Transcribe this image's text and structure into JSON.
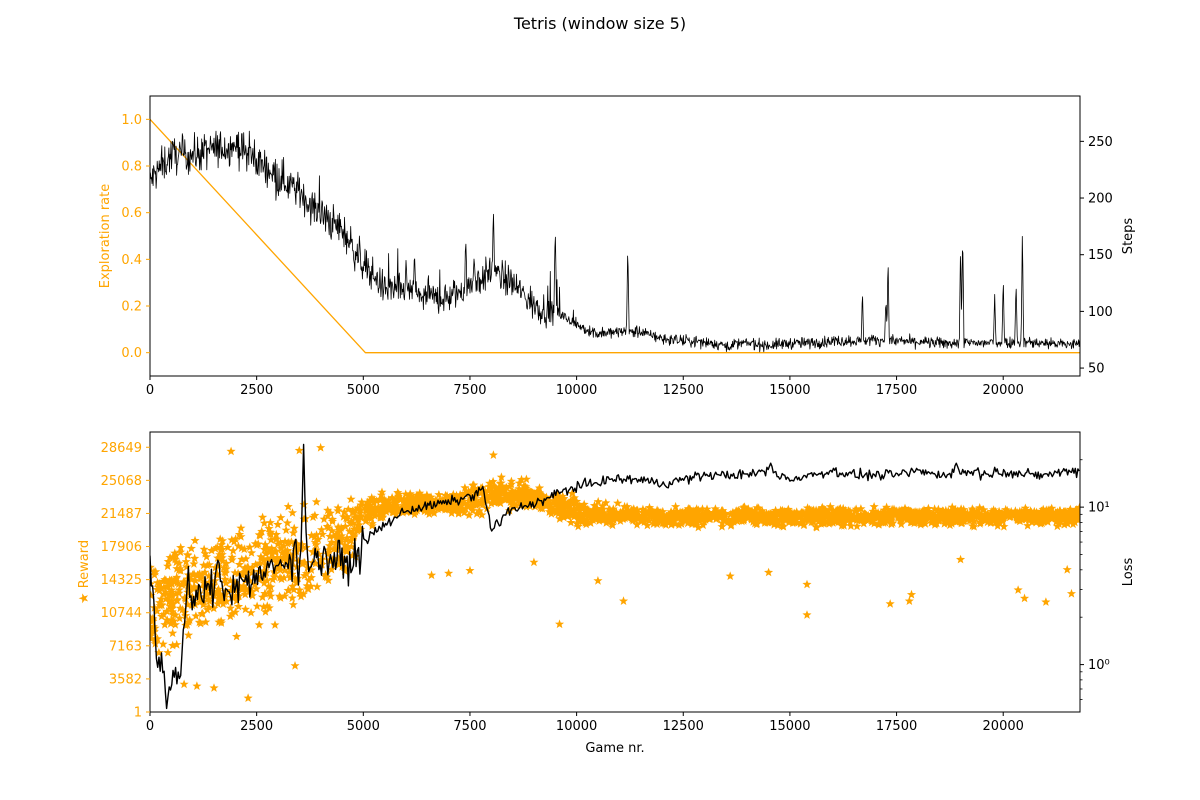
{
  "figure": {
    "title": "Tetris (window size 5)",
    "accent_color": "#ffa500",
    "line_color": "#000000"
  },
  "chart_data": [
    {
      "type": "line",
      "panel": "top",
      "xlabel": "",
      "xlim": [
        0,
        21800
      ],
      "x_ticks": [
        0,
        2500,
        5000,
        7500,
        10000,
        12500,
        15000,
        17500,
        20000
      ],
      "left_axis": {
        "label": "Exploration rate",
        "color": "#ffa500",
        "ylim": [
          -0.1,
          1.1
        ],
        "ticks": [
          0.0,
          0.2,
          0.4,
          0.6,
          0.8,
          1.0
        ]
      },
      "right_axis": {
        "label": "Steps",
        "color": "#000000",
        "ylim": [
          43,
          290
        ],
        "ticks": [
          50,
          100,
          150,
          200,
          250
        ]
      },
      "series": [
        {
          "axis": "left",
          "color": "#ffa500",
          "points": [
            [
              0,
              1.0
            ],
            [
              5050,
              0.0
            ],
            [
              21800,
              0.0
            ]
          ]
        },
        {
          "axis": "right",
          "color": "#000000",
          "points": [
            [
              0,
              215
            ],
            [
              500,
              238
            ],
            [
              1000,
              238
            ],
            [
              1500,
              243
            ],
            [
              2000,
              247
            ],
            [
              2500,
              233
            ],
            [
              3000,
              220
            ],
            [
              3500,
              205
            ],
            [
              4000,
              185
            ],
            [
              4500,
              172
            ],
            [
              5000,
              142
            ],
            [
              5500,
              120
            ],
            [
              6000,
              118
            ],
            [
              6500,
              112
            ],
            [
              7000,
              112
            ],
            [
              7500,
              122
            ],
            [
              8000,
              135
            ],
            [
              8500,
              125
            ],
            [
              9000,
              105
            ],
            [
              9500,
              100
            ],
            [
              10000,
              88
            ],
            [
              10500,
              80
            ],
            [
              11000,
              82
            ],
            [
              11500,
              82
            ],
            [
              12000,
              76
            ],
            [
              12500,
              74
            ],
            [
              13000,
              73
            ],
            [
              13500,
              70
            ],
            [
              14000,
              72
            ],
            [
              14500,
              70
            ],
            [
              15000,
              72
            ],
            [
              15500,
              72
            ],
            [
              16000,
              74
            ],
            [
              16500,
              74
            ],
            [
              17000,
              75
            ],
            [
              17500,
              74
            ],
            [
              18000,
              73
            ],
            [
              18500,
              72
            ],
            [
              19000,
              72
            ],
            [
              19500,
              72
            ],
            [
              20000,
              73
            ],
            [
              20500,
              73
            ],
            [
              21000,
              72
            ],
            [
              21500,
              71
            ],
            [
              21800,
              71
            ]
          ],
          "spikes": [
            [
              8050,
              190
            ],
            [
              9500,
              175
            ],
            [
              11200,
              160
            ],
            [
              17300,
              148
            ],
            [
              19000,
              160
            ],
            [
              19050,
              173
            ],
            [
              20300,
              127
            ],
            [
              20450,
              173
            ],
            [
              16700,
              118
            ],
            [
              17250,
              112
            ],
            [
              19800,
              115
            ],
            [
              20000,
              130
            ],
            [
              6000,
              145
            ],
            [
              6200,
              152
            ],
            [
              7400,
              165
            ],
            [
              7600,
              150
            ]
          ]
        }
      ]
    },
    {
      "type": "scatter",
      "panel": "bottom",
      "xlabel": "Game nr.",
      "xlim": [
        0,
        21800
      ],
      "x_ticks": [
        0,
        2500,
        5000,
        7500,
        10000,
        12500,
        15000,
        17500,
        20000
      ],
      "left_axis": {
        "label": "★ Reward",
        "color": "#ffa500",
        "ylim": [
          1,
          30300
        ],
        "ticks": [
          1,
          3582,
          7163,
          10744,
          14325,
          17906,
          21487,
          25068,
          28649
        ]
      },
      "right_axis": {
        "label": "Loss",
        "color": "#000000",
        "scale": "log",
        "ylim": [
          0.5,
          30
        ],
        "ticks": [
          1,
          10
        ],
        "tick_labels": [
          "10⁰",
          "10¹"
        ]
      },
      "series": [
        {
          "axis": "left",
          "marker": "star",
          "color": "#ffa500",
          "band": [
            [
              0,
              3000,
              20000
            ],
            [
              1000,
              4000,
              22000
            ],
            [
              2000,
              5000,
              24000
            ],
            [
              3000,
              7000,
              25500
            ],
            [
              4000,
              9000,
              26000
            ],
            [
              4600,
              12000,
              26000
            ],
            [
              5000,
              18000,
              25000
            ],
            [
              5500,
              20000,
              24500
            ],
            [
              6000,
              20500,
              24500
            ],
            [
              7000,
              20500,
              24500
            ],
            [
              7500,
              20500,
              25500
            ],
            [
              8000,
              21000,
              26500
            ],
            [
              8500,
              21000,
              26000
            ],
            [
              9000,
              21000,
              25500
            ],
            [
              9500,
              20000,
              25000
            ],
            [
              10000,
              19500,
              24000
            ],
            [
              11000,
              19500,
              23000
            ],
            [
              12000,
              19500,
              22800
            ],
            [
              13000,
              19500,
              22800
            ],
            [
              14000,
              19500,
              22800
            ],
            [
              15000,
              19500,
              22800
            ],
            [
              16000,
              19500,
              22800
            ],
            [
              17000,
              19500,
              22800
            ],
            [
              18000,
              19500,
              22800
            ],
            [
              19000,
              19500,
              22800
            ],
            [
              20000,
              19500,
              22800
            ],
            [
              21000,
              19500,
              22800
            ],
            [
              21800,
              19500,
              22800
            ]
          ],
          "outliers": [
            [
              1900,
              28200
            ],
            [
              3500,
              28300
            ],
            [
              4000,
              28600
            ],
            [
              8050,
              27800
            ],
            [
              9600,
              9500
            ],
            [
              11100,
              12000
            ],
            [
              15400,
              10500
            ],
            [
              15400,
              13800
            ],
            [
              10500,
              14200
            ],
            [
              17350,
              11700
            ],
            [
              17800,
              12000
            ],
            [
              17850,
              12700
            ],
            [
              19000,
              16500
            ],
            [
              20350,
              13200
            ],
            [
              20500,
              12300
            ],
            [
              21000,
              11900
            ],
            [
              21600,
              12800
            ],
            [
              21500,
              15400
            ],
            [
              6600,
              14800
            ],
            [
              7000,
              15000
            ],
            [
              7500,
              15300
            ],
            [
              9000,
              16200
            ],
            [
              13600,
              14700
            ],
            [
              14500,
              15100
            ],
            [
              2300,
              1500
            ],
            [
              1100,
              2800
            ],
            [
              1500,
              2600
            ],
            [
              800,
              3000
            ],
            [
              3400,
              5000
            ]
          ]
        },
        {
          "axis": "right",
          "color": "#000000",
          "points": [
            [
              0,
              4
            ],
            [
              150,
              1.2
            ],
            [
              300,
              0.95
            ],
            [
              450,
              0.85
            ],
            [
              600,
              0.8
            ],
            [
              750,
              1.2
            ],
            [
              900,
              3
            ],
            [
              1050,
              2.2
            ],
            [
              1200,
              2.5
            ],
            [
              1400,
              3
            ],
            [
              1600,
              3.5
            ],
            [
              1800,
              3
            ],
            [
              2000,
              3.2
            ],
            [
              2200,
              3.4
            ],
            [
              2500,
              3.6
            ],
            [
              2800,
              4
            ],
            [
              3100,
              4.5
            ],
            [
              3400,
              4.4
            ],
            [
              3700,
              4.8
            ],
            [
              4000,
              4.6
            ],
            [
              4300,
              4.7
            ],
            [
              4600,
              4.3
            ],
            [
              4800,
              4.6
            ],
            [
              5000,
              6
            ],
            [
              5300,
              7
            ],
            [
              5600,
              8
            ],
            [
              6000,
              9.5
            ],
            [
              6400,
              10
            ],
            [
              6800,
              10.5
            ],
            [
              7200,
              11
            ],
            [
              7600,
              12
            ],
            [
              7800,
              13
            ],
            [
              8000,
              7
            ],
            [
              8300,
              9
            ],
            [
              8700,
              10
            ],
            [
              9200,
              11
            ],
            [
              9800,
              13
            ],
            [
              10300,
              14
            ],
            [
              10800,
              15
            ],
            [
              11500,
              15
            ],
            [
              12000,
              14
            ],
            [
              12500,
              15
            ],
            [
              13000,
              16
            ],
            [
              13500,
              16
            ],
            [
              14000,
              16
            ],
            [
              14500,
              17
            ],
            [
              15000,
              15
            ],
            [
              15500,
              16
            ],
            [
              16000,
              17
            ],
            [
              16500,
              16
            ],
            [
              17000,
              16
            ],
            [
              17500,
              16
            ],
            [
              18000,
              17
            ],
            [
              18500,
              16
            ],
            [
              19000,
              17
            ],
            [
              19500,
              16
            ],
            [
              20000,
              17
            ],
            [
              20500,
              16
            ],
            [
              21000,
              16
            ],
            [
              21500,
              17
            ],
            [
              21800,
              17
            ]
          ],
          "spikes": [
            [
              400,
              0.5
            ],
            [
              700,
              0.8
            ],
            [
              1150,
              3.5
            ],
            [
              1600,
              4.8
            ],
            [
              2200,
              3.4
            ],
            [
              2700,
              3.6
            ],
            [
              3150,
              4.1
            ],
            [
              3600,
              25
            ],
            [
              3400,
              6.5
            ],
            [
              4100,
              5.5
            ],
            [
              8200,
              7.5
            ],
            [
              14300,
              17
            ],
            [
              14550,
              19
            ],
            [
              18900,
              19
            ],
            [
              19400,
              18
            ]
          ]
        }
      ]
    }
  ]
}
